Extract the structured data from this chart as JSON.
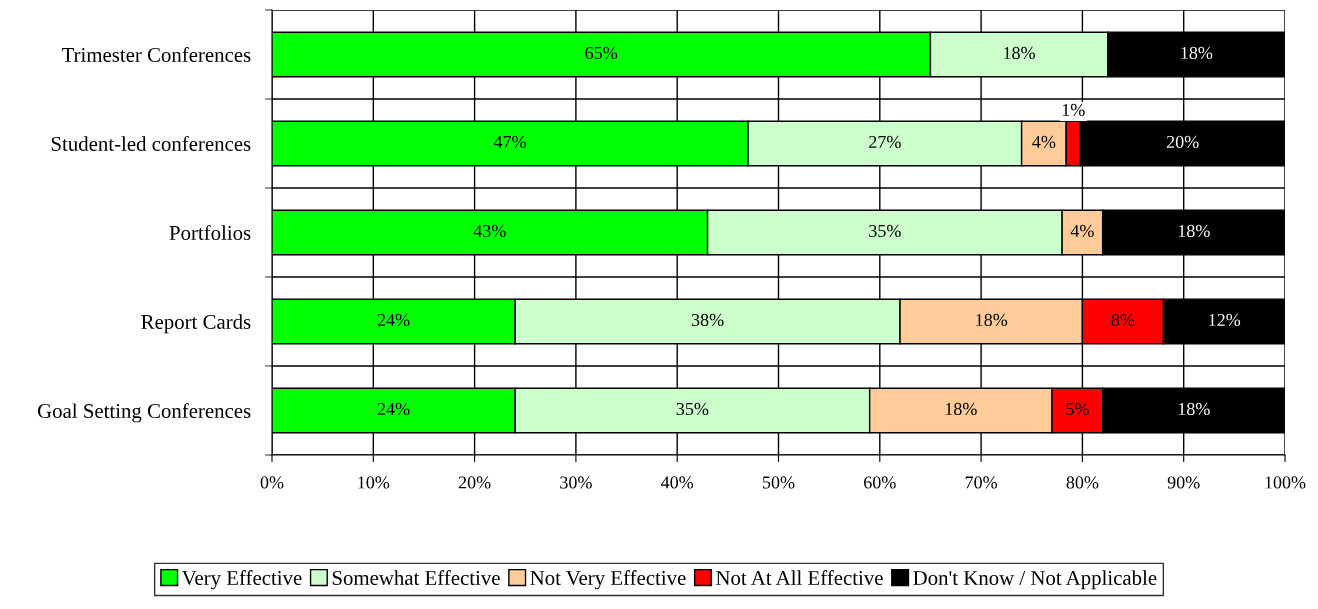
{
  "chart_data": {
    "type": "bar",
    "orientation": "horizontal",
    "stacked": true,
    "categories": [
      "Trimester Conferences",
      "Student-led conferences",
      "Portfolios",
      "Report Cards",
      "Goal Setting Conferences"
    ],
    "series": [
      {
        "name": "Very Effective",
        "color": "#00ff00",
        "values": [
          65,
          47,
          43,
          24,
          24
        ],
        "value_labels": [
          "65%",
          "47%",
          "43%",
          "24%",
          "24%"
        ]
      },
      {
        "name": "Somewhat Effective",
        "color": "#ccffcc",
        "values": [
          17.5,
          27,
          35,
          38,
          35
        ],
        "value_labels": [
          "18%",
          "27%",
          "35%",
          "38%",
          "35%"
        ]
      },
      {
        "name": "Not Very Effective",
        "color": "#ffcc99",
        "values": [
          null,
          4.4,
          4,
          18,
          18
        ],
        "value_labels": [
          null,
          "4%",
          "4%",
          "18%",
          "18%"
        ]
      },
      {
        "name": "Not At All Effective",
        "color": "#ff0000",
        "values": [
          null,
          1.4,
          null,
          8,
          5
        ],
        "value_labels": [
          null,
          "1%",
          null,
          "8%",
          "5%"
        ]
      },
      {
        "name": "Don't Know / Not Applicable",
        "color": "#000000",
        "values": [
          17.5,
          20.2,
          18,
          12,
          18
        ],
        "value_labels": [
          "18%",
          "20%",
          "18%",
          "12%",
          "18%"
        ]
      }
    ],
    "xlim": [
      0,
      100
    ],
    "xticks": [
      {
        "value": 0,
        "label": "0%"
      },
      {
        "value": 10,
        "label": "10%"
      },
      {
        "value": 20,
        "label": "20%"
      },
      {
        "value": 30,
        "label": "30%"
      },
      {
        "value": 40,
        "label": "40%"
      },
      {
        "value": 50,
        "label": "50%"
      },
      {
        "value": 60,
        "label": "60%"
      },
      {
        "value": 70,
        "label": "70%"
      },
      {
        "value": 80,
        "label": "80%"
      },
      {
        "value": 90,
        "label": "90%"
      },
      {
        "value": 100,
        "label": "100%"
      }
    ],
    "grid": true,
    "legend": "bottom"
  }
}
